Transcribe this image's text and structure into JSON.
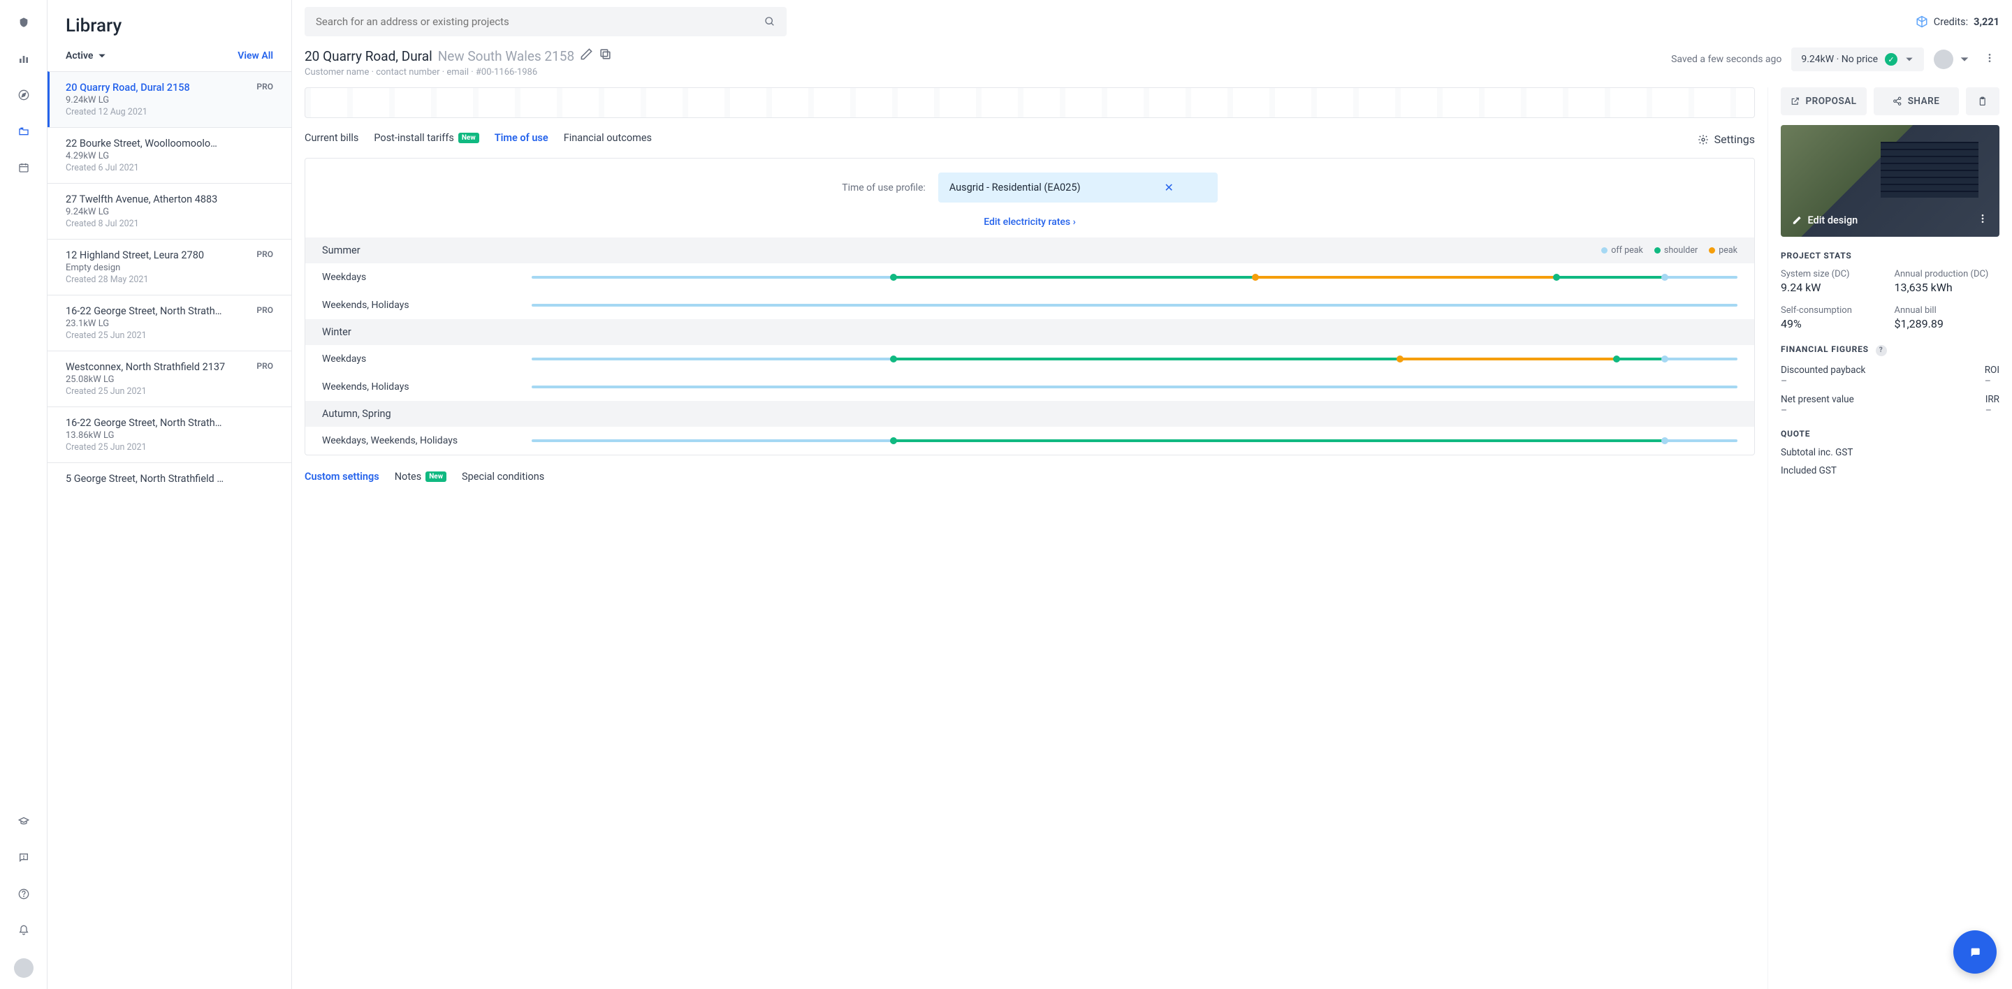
{
  "colors": {
    "offpeak": "#a5d8f3",
    "shoulder": "#10b981",
    "peak": "#f59e0b"
  },
  "library": {
    "title": "Library",
    "filter_label": "Active",
    "view_all": "View All",
    "projects": [
      {
        "address": "20 Quarry Road, Dural 2158",
        "system": "9.24kW LG",
        "created": "Created 12 Aug 2021",
        "pro": "PRO",
        "selected": true
      },
      {
        "address": "22 Bourke Street, Woolloomoolo…",
        "system": "4.29kW LG",
        "created": "Created 6 Jul 2021",
        "pro": "",
        "selected": false
      },
      {
        "address": "27 Twelfth Avenue, Atherton 4883",
        "system": "9.24kW LG",
        "created": "Created 8 Jul 2021",
        "pro": "",
        "selected": false
      },
      {
        "address": "12 Highland Street, Leura 2780",
        "system": "Empty design",
        "created": "Created 28 May 2021",
        "pro": "PRO",
        "selected": false
      },
      {
        "address": "16-22 George Street, North Strath…",
        "system": "23.1kW LG",
        "created": "Created 25 Jun 2021",
        "pro": "PRO",
        "selected": false
      },
      {
        "address": "Westconnex, North Strathfield 2137",
        "system": "25.08kW LG",
        "created": "Created 25 Jun 2021",
        "pro": "PRO",
        "selected": false
      },
      {
        "address": "16-22 George Street, North Strath…",
        "system": "13.86kW LG",
        "created": "Created 25 Jun 2021",
        "pro": "",
        "selected": false
      },
      {
        "address": "5 George Street, North Strathfield …",
        "system": "",
        "created": "",
        "pro": "",
        "selected": false
      }
    ]
  },
  "search": {
    "placeholder": "Search for an address or existing projects"
  },
  "credits": {
    "label": "Credits:",
    "value": "3,221"
  },
  "project": {
    "address": "20 Quarry Road, Dural",
    "region": "New South Wales 2158",
    "customer_line": "Customer name · contact number · email · #00-1166-1986",
    "saved": "Saved a few seconds ago",
    "pill": "9.24kW · No price"
  },
  "tabs": {
    "current_bills": "Current bills",
    "post_install": "Post-install tariffs",
    "time_of_use": "Time of use",
    "financial": "Financial outcomes",
    "settings": "Settings",
    "new_badge": "New"
  },
  "tou": {
    "profile_label": "Time of use profile:",
    "profile_name": "Ausgrid - Residential (EA025)",
    "edit_rates": "Edit electricity rates",
    "legend": {
      "offpeak": "off peak",
      "shoulder": "shoulder",
      "peak": "peak"
    },
    "seasons": [
      {
        "name": "Summer",
        "rows": [
          {
            "label": "Weekdays",
            "segments": [
              {
                "from": 0,
                "to": 30,
                "color": "offpeak"
              },
              {
                "from": 30,
                "to": 60,
                "color": "shoulder"
              },
              {
                "from": 60,
                "to": 85,
                "color": "peak"
              },
              {
                "from": 85,
                "to": 94,
                "color": "shoulder"
              },
              {
                "from": 94,
                "to": 100,
                "color": "offpeak"
              }
            ],
            "nodes": [
              30,
              60,
              85,
              94
            ]
          },
          {
            "label": "Weekends, Holidays",
            "segments": [
              {
                "from": 0,
                "to": 100,
                "color": "offpeak"
              }
            ],
            "nodes": []
          }
        ]
      },
      {
        "name": "Winter",
        "rows": [
          {
            "label": "Weekdays",
            "segments": [
              {
                "from": 0,
                "to": 30,
                "color": "offpeak"
              },
              {
                "from": 30,
                "to": 72,
                "color": "shoulder"
              },
              {
                "from": 72,
                "to": 90,
                "color": "peak"
              },
              {
                "from": 90,
                "to": 94,
                "color": "shoulder"
              },
              {
                "from": 94,
                "to": 100,
                "color": "offpeak"
              }
            ],
            "nodes": [
              30,
              72,
              90,
              94
            ]
          },
          {
            "label": "Weekends, Holidays",
            "segments": [
              {
                "from": 0,
                "to": 100,
                "color": "offpeak"
              }
            ],
            "nodes": []
          }
        ]
      },
      {
        "name": "Autumn, Spring",
        "rows": [
          {
            "label": "Weekdays, Weekends, Holidays",
            "segments": [
              {
                "from": 0,
                "to": 30,
                "color": "offpeak"
              },
              {
                "from": 30,
                "to": 94,
                "color": "shoulder"
              },
              {
                "from": 94,
                "to": 100,
                "color": "offpeak"
              }
            ],
            "nodes": [
              30,
              94
            ]
          }
        ]
      }
    ]
  },
  "bottom_tabs": {
    "custom": "Custom settings",
    "notes": "Notes",
    "special": "Special conditions"
  },
  "actions": {
    "proposal": "PROPOSAL",
    "share": "SHARE"
  },
  "design": {
    "edit": "Edit design"
  },
  "stats": {
    "title": "PROJECT STATS",
    "system_size_label": "System size (DC)",
    "system_size": "9.24 kW",
    "annual_prod_label": "Annual production (DC)",
    "annual_prod": "13,635 kWh",
    "self_cons_label": "Self-consumption",
    "self_cons": "49%",
    "annual_bill_label": "Annual bill",
    "annual_bill": "$1,289.89"
  },
  "financial_figures": {
    "title": "FINANCIAL FIGURES",
    "payback_label": "Discounted payback",
    "payback": "–",
    "roi_label": "ROI",
    "roi": "–",
    "npv_label": "Net present value",
    "npv": "–",
    "irr_label": "IRR",
    "irr": "–"
  },
  "quote": {
    "title": "QUOTE",
    "subtotal_label": "Subtotal inc. GST",
    "included_gst": "Included GST"
  }
}
